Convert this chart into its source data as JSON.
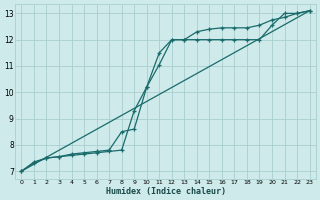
{
  "xlabel": "Humidex (Indice chaleur)",
  "background_color": "#ceeaea",
  "grid_color": "#aacece",
  "line_color": "#1a6b6b",
  "xlim": [
    -0.5,
    23.5
  ],
  "ylim": [
    6.7,
    13.35
  ],
  "xticks": [
    0,
    1,
    2,
    3,
    4,
    5,
    6,
    7,
    8,
    9,
    10,
    11,
    12,
    13,
    14,
    15,
    16,
    17,
    18,
    19,
    20,
    21,
    22,
    23
  ],
  "yticks": [
    7,
    8,
    9,
    10,
    11,
    12,
    13
  ],
  "line1_x": [
    0,
    1,
    2,
    3,
    4,
    5,
    6,
    7,
    8,
    9,
    10,
    11,
    12,
    13,
    14,
    15,
    16,
    17,
    18,
    19,
    20,
    21,
    22,
    23
  ],
  "line1_y": [
    7.0,
    7.35,
    7.5,
    7.55,
    7.65,
    7.7,
    7.75,
    7.8,
    8.5,
    8.6,
    10.2,
    11.5,
    12.0,
    12.0,
    12.3,
    12.4,
    12.45,
    12.45,
    12.45,
    12.55,
    12.75,
    12.85,
    13.0,
    13.1
  ],
  "line2_x": [
    0,
    1,
    2,
    3,
    4,
    5,
    6,
    7,
    8,
    9,
    10,
    11,
    12,
    13,
    14,
    15,
    16,
    17,
    18,
    19,
    20,
    21,
    22,
    23
  ],
  "line2_y": [
    7.0,
    7.3,
    7.5,
    7.55,
    7.6,
    7.65,
    7.7,
    7.75,
    7.8,
    9.3,
    10.2,
    11.05,
    12.0,
    12.0,
    12.0,
    12.0,
    12.0,
    12.0,
    12.0,
    12.0,
    12.55,
    13.0,
    13.0,
    13.1
  ],
  "line3_x": [
    0,
    23
  ],
  "line3_y": [
    7.0,
    13.1
  ]
}
